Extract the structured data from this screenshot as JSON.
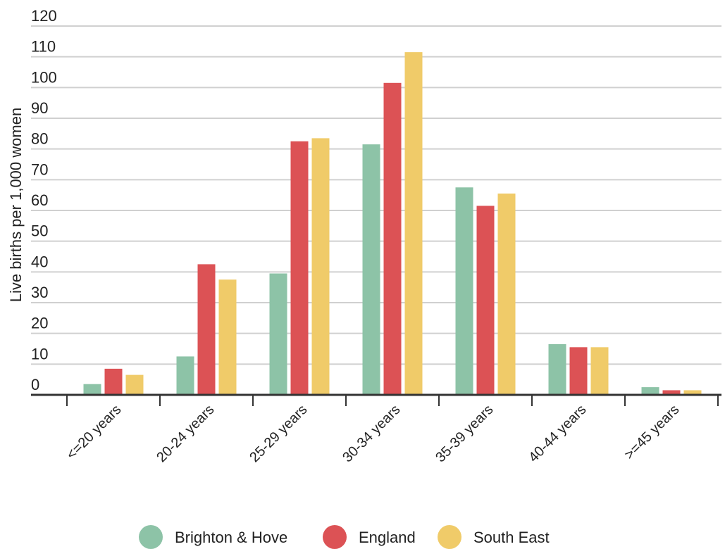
{
  "chart_data": {
    "type": "bar",
    "title": "",
    "xlabel": "",
    "ylabel": "Live births per 1,000 women",
    "ylim": [
      0,
      120
    ],
    "yticks": [
      0,
      10,
      20,
      30,
      40,
      50,
      60,
      70,
      80,
      90,
      100,
      110,
      120
    ],
    "grid": true,
    "legend_position": "bottom-center",
    "categories": [
      "<=20 years",
      "20-24 years",
      "25-29 years",
      "30-34 years",
      "35-39 years",
      "40-44 years",
      ">=45 years"
    ],
    "series": [
      {
        "name": "Brighton & Hove",
        "color": "#8dc3a7",
        "values": [
          3.5,
          12.5,
          39.5,
          81.5,
          67.5,
          16.5,
          2.5
        ]
      },
      {
        "name": "England",
        "color": "#dc5255",
        "values": [
          8.5,
          42.5,
          82.5,
          101.5,
          61.5,
          15.5,
          1.5
        ]
      },
      {
        "name": "South East",
        "color": "#f0cb69",
        "values": [
          6.5,
          37.5,
          83.5,
          111.5,
          65.5,
          15.5,
          1.5
        ]
      }
    ]
  }
}
